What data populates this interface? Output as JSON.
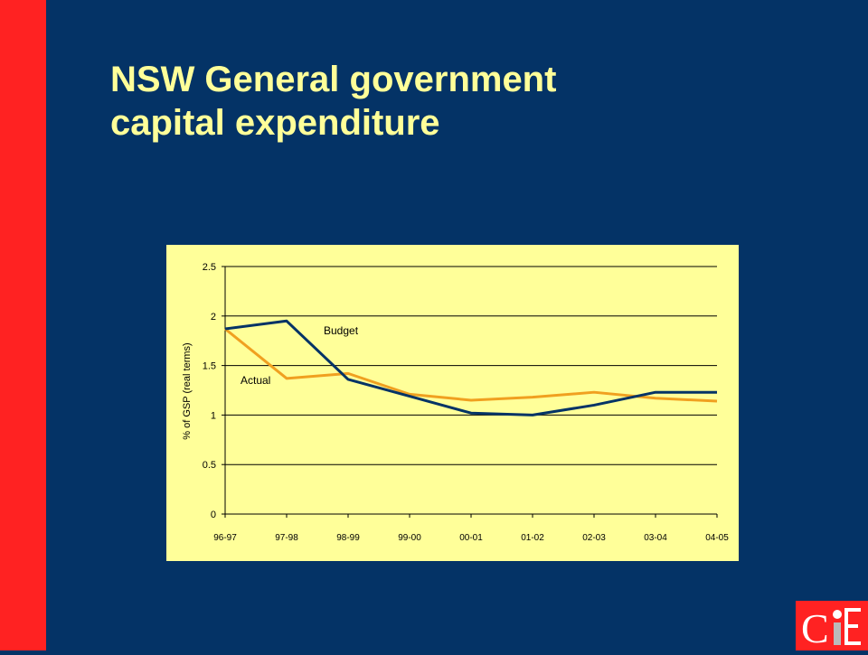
{
  "slide": {
    "title_line1": "NSW General government",
    "title_line2": "capital expenditure"
  },
  "colors": {
    "background": "#043366",
    "accent_bar": "#ff2222",
    "title": "#ffff99",
    "chart_bg": "#ffff99",
    "budget_line": "#043366",
    "actual_line": "#f0a020"
  },
  "logo": {
    "text": "CIE"
  },
  "chart_data": {
    "type": "line",
    "ylabel": "% of GSP (real terms)",
    "xlabel": "",
    "categories": [
      "96-97",
      "97-98",
      "98-99",
      "99-00",
      "00-01",
      "01-02",
      "02-03",
      "03-04",
      "04-05"
    ],
    "ylim": [
      0,
      2.5
    ],
    "yticks": [
      0,
      0.5,
      1,
      1.5,
      2,
      2.5
    ],
    "yticklabels": [
      "0",
      "0.5",
      "1",
      "1.5",
      "2",
      "2.5"
    ],
    "grid": true,
    "series": [
      {
        "name": "Budget",
        "values": [
          1.87,
          1.95,
          1.36,
          1.19,
          1.02,
          1.0,
          1.1,
          1.23,
          1.23
        ]
      },
      {
        "name": "Actual",
        "values": [
          1.87,
          1.37,
          1.42,
          1.21,
          1.15,
          1.18,
          1.23,
          1.17,
          1.14
        ]
      }
    ]
  }
}
